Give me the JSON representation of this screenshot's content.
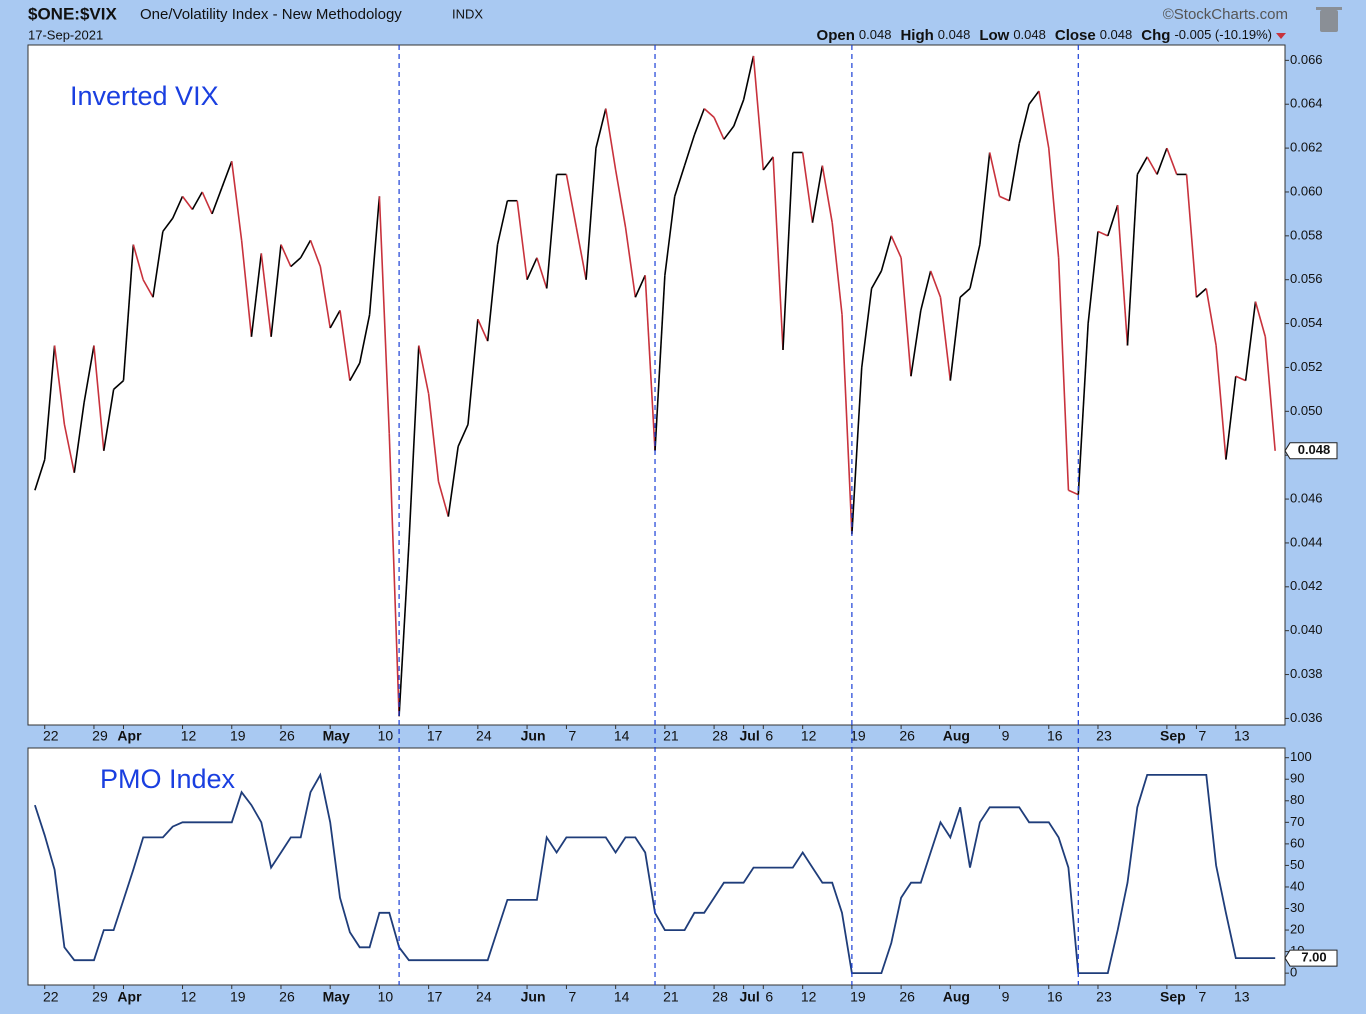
{
  "header": {
    "symbol": "$ONE:$VIX",
    "name": "One/Volatility Index - New Methodology",
    "exchange": "INDX",
    "date": "17-Sep-2021",
    "source": "©StockCharts.com",
    "open_label": "Open",
    "open": "0.048",
    "high_label": "High",
    "high": "0.048",
    "low_label": "Low",
    "low": "0.048",
    "close_label": "Close",
    "close": "0.048",
    "chg_label": "Chg",
    "chg": "-0.005 (-10.19%)"
  },
  "event_lines": [
    37,
    63,
    83,
    106
  ],
  "event_color": "#1a3fd6",
  "chart_data": [
    {
      "type": "line",
      "annotation": "Inverted VIX",
      "rise_color": "#000000",
      "fall_color": "#c8323c",
      "values": [
        0.0464,
        0.0478,
        0.053,
        0.0494,
        0.0472,
        0.0504,
        0.053,
        0.0482,
        0.051,
        0.0514,
        0.0576,
        0.056,
        0.0552,
        0.0582,
        0.0588,
        0.0598,
        0.0592,
        0.06,
        0.059,
        0.0602,
        0.0614,
        0.0578,
        0.0534,
        0.0572,
        0.0534,
        0.0576,
        0.0566,
        0.057,
        0.0578,
        0.0566,
        0.0538,
        0.0546,
        0.0514,
        0.0522,
        0.0544,
        0.0598,
        0.049,
        0.0361,
        0.044,
        0.053,
        0.0508,
        0.0468,
        0.0452,
        0.0484,
        0.0494,
        0.0542,
        0.0532,
        0.0576,
        0.0596,
        0.0596,
        0.056,
        0.057,
        0.0556,
        0.0608,
        0.0608,
        0.0584,
        0.056,
        0.062,
        0.0638,
        0.061,
        0.0584,
        0.0552,
        0.0562,
        0.0482,
        0.0562,
        0.0598,
        0.0612,
        0.0626,
        0.0638,
        0.0634,
        0.0624,
        0.063,
        0.0642,
        0.0662,
        0.061,
        0.0616,
        0.0528,
        0.0618,
        0.0618,
        0.0586,
        0.0612,
        0.0586,
        0.0544,
        0.0444,
        0.052,
        0.0556,
        0.0564,
        0.058,
        0.057,
        0.0516,
        0.0546,
        0.0564,
        0.0552,
        0.0514,
        0.0552,
        0.0556,
        0.0576,
        0.0618,
        0.0598,
        0.0596,
        0.0622,
        0.064,
        0.0646,
        0.062,
        0.057,
        0.0464,
        0.0462,
        0.054,
        0.0582,
        0.058,
        0.0594,
        0.053,
        0.0608,
        0.0616,
        0.0608,
        0.062,
        0.0608,
        0.0608,
        0.0552,
        0.0556,
        0.053,
        0.0478,
        0.0516,
        0.0514,
        0.055,
        0.0534,
        0.0482
      ],
      "last_label": "0.048",
      "xlim": [
        -0.7,
        127
      ],
      "xticks": [
        {
          "value": 1,
          "label": "22"
        },
        {
          "value": 6,
          "label": "29"
        },
        {
          "value": 9,
          "label": "Apr"
        },
        {
          "value": 15,
          "label": "12"
        },
        {
          "value": 20,
          "label": "19"
        },
        {
          "value": 25,
          "label": "26"
        },
        {
          "value": 30,
          "label": "May"
        },
        {
          "value": 35,
          "label": "10"
        },
        {
          "value": 40,
          "label": "17"
        },
        {
          "value": 45,
          "label": "24"
        },
        {
          "value": 50,
          "label": "Jun"
        },
        {
          "value": 54,
          "label": "7"
        },
        {
          "value": 59,
          "label": "14"
        },
        {
          "value": 64,
          "label": "21"
        },
        {
          "value": 69,
          "label": "28"
        },
        {
          "value": 72,
          "label": "Jul"
        },
        {
          "value": 74,
          "label": "6"
        },
        {
          "value": 78,
          "label": "12"
        },
        {
          "value": 83,
          "label": "19"
        },
        {
          "value": 88,
          "label": "26"
        },
        {
          "value": 93,
          "label": "Aug"
        },
        {
          "value": 98,
          "label": "9"
        },
        {
          "value": 103,
          "label": "16"
        },
        {
          "value": 108,
          "label": "23"
        },
        {
          "value": 115,
          "label": "Sep"
        },
        {
          "value": 118,
          "label": "7"
        },
        {
          "value": 122,
          "label": "13"
        }
      ],
      "ylim": [
        0.0357,
        0.0667
      ],
      "yticks": [
        {
          "value": 0.036,
          "label": "0.036"
        },
        {
          "value": 0.038,
          "label": "0.038"
        },
        {
          "value": 0.04,
          "label": "0.040"
        },
        {
          "value": 0.042,
          "label": "0.042"
        },
        {
          "value": 0.044,
          "label": "0.044"
        },
        {
          "value": 0.046,
          "label": "0.046"
        },
        {
          "value": 0.048,
          "label": "0.048"
        },
        {
          "value": 0.05,
          "label": "0.050"
        },
        {
          "value": 0.052,
          "label": "0.052"
        },
        {
          "value": 0.054,
          "label": "0.054"
        },
        {
          "value": 0.056,
          "label": "0.056"
        },
        {
          "value": 0.058,
          "label": "0.058"
        },
        {
          "value": 0.06,
          "label": "0.060"
        },
        {
          "value": 0.062,
          "label": "0.062"
        },
        {
          "value": 0.064,
          "label": "0.064"
        },
        {
          "value": 0.066,
          "label": "0.066"
        }
      ]
    },
    {
      "type": "line",
      "annotation": "PMO Index",
      "color": "#1f3d7a",
      "values": [
        78,
        64,
        48,
        12,
        6,
        6,
        6,
        20,
        20,
        34,
        48,
        63,
        63,
        63,
        68,
        70,
        70,
        70,
        70,
        70,
        70,
        84,
        78,
        70,
        49,
        56,
        63,
        63,
        84,
        92,
        70,
        35,
        19,
        12,
        12,
        28,
        28,
        12,
        6,
        6,
        6,
        6,
        6,
        6,
        6,
        6,
        6,
        20,
        34,
        34,
        34,
        34,
        63,
        56,
        63,
        63,
        63,
        63,
        63,
        56,
        63,
        63,
        56,
        28,
        20,
        20,
        20,
        28,
        28,
        35,
        42,
        42,
        42,
        49,
        49,
        49,
        49,
        49,
        56,
        49,
        42,
        42,
        28,
        0,
        0,
        0,
        0,
        14,
        35,
        42,
        42,
        56,
        70,
        63,
        77,
        49,
        70,
        77,
        77,
        77,
        77,
        70,
        70,
        70,
        63,
        49,
        0,
        0,
        0,
        0,
        20,
        42,
        77,
        92,
        92,
        92,
        92,
        92,
        92,
        92,
        50,
        28,
        7,
        7,
        7,
        7,
        7
      ],
      "last_label": "7.00",
      "xlim": [
        -0.7,
        127
      ],
      "xticks": [
        {
          "value": 1,
          "label": "22"
        },
        {
          "value": 6,
          "label": "29"
        },
        {
          "value": 9,
          "label": "Apr"
        },
        {
          "value": 15,
          "label": "12"
        },
        {
          "value": 20,
          "label": "19"
        },
        {
          "value": 25,
          "label": "26"
        },
        {
          "value": 30,
          "label": "May"
        },
        {
          "value": 35,
          "label": "10"
        },
        {
          "value": 40,
          "label": "17"
        },
        {
          "value": 45,
          "label": "24"
        },
        {
          "value": 50,
          "label": "Jun"
        },
        {
          "value": 54,
          "label": "7"
        },
        {
          "value": 59,
          "label": "14"
        },
        {
          "value": 64,
          "label": "21"
        },
        {
          "value": 69,
          "label": "28"
        },
        {
          "value": 72,
          "label": "Jul"
        },
        {
          "value": 74,
          "label": "6"
        },
        {
          "value": 78,
          "label": "12"
        },
        {
          "value": 83,
          "label": "19"
        },
        {
          "value": 88,
          "label": "26"
        },
        {
          "value": 93,
          "label": "Aug"
        },
        {
          "value": 98,
          "label": "9"
        },
        {
          "value": 103,
          "label": "16"
        },
        {
          "value": 108,
          "label": "23"
        },
        {
          "value": 115,
          "label": "Sep"
        },
        {
          "value": 118,
          "label": "7"
        },
        {
          "value": 122,
          "label": "13"
        }
      ],
      "ylim": [
        -5.5,
        104.5
      ],
      "yticks": [
        0,
        10,
        20,
        30,
        40,
        50,
        60,
        70,
        80,
        90,
        100
      ]
    }
  ]
}
